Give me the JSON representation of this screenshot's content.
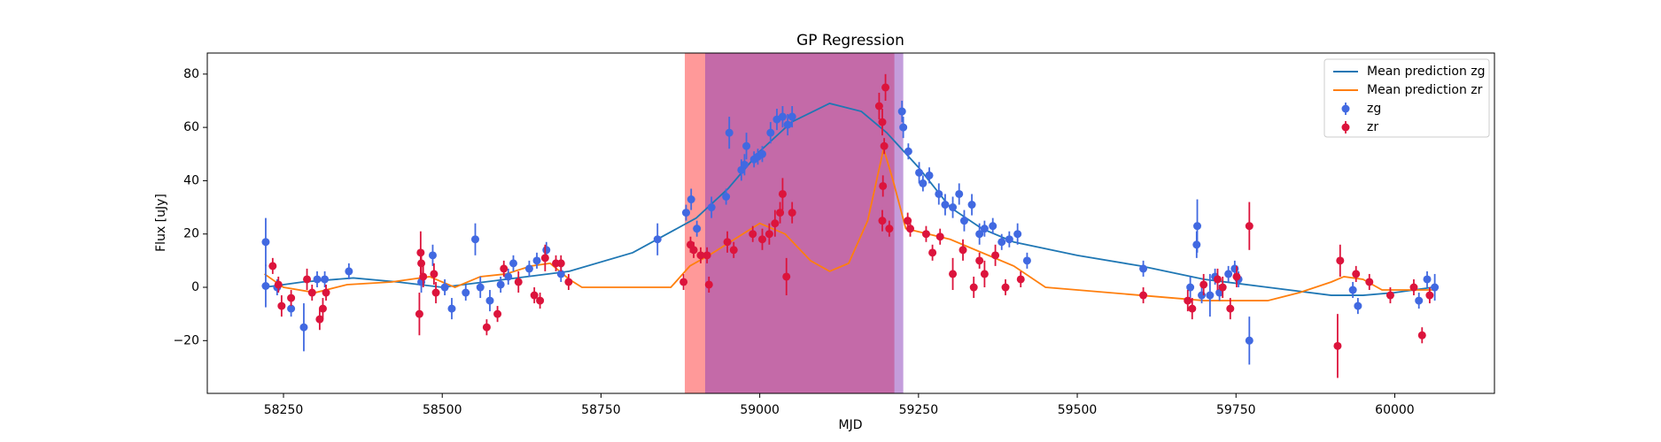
{
  "chart_data": {
    "type": "line",
    "title": "GP Regression",
    "x_label": "MJD",
    "y_label": "Flux [uJy]",
    "xlim": [
      58130,
      60157
    ],
    "ylim": [
      -39.8,
      87.9
    ],
    "xticks": [
      58250,
      58500,
      58750,
      59000,
      59250,
      59500,
      59750,
      60000
    ],
    "yticks": [
      {
        "value": -20,
        "label": "−20"
      },
      0,
      20,
      40,
      60,
      80
    ],
    "legend": "upper right",
    "spans": [
      {
        "xmin": 58882,
        "xmax": 59212,
        "color": "#ff0000",
        "alpha": 0.4
      },
      {
        "xmin": 58914,
        "xmax": 59226,
        "color": "#893bb7",
        "alpha": 0.5
      }
    ],
    "series": [
      {
        "name": "Mean prediction zg",
        "kind": "line",
        "color": "#1f77b4",
        "x": [
          58220,
          58280,
          58360,
          58430,
          58500,
          58600,
          58700,
          58800,
          58900,
          58950,
          59000,
          59050,
          59110,
          59160,
          59200,
          59250,
          59300,
          59350,
          59400,
          59500,
          59600,
          59700,
          59800,
          59900,
          59950,
          60000,
          60060
        ],
        "values": [
          0,
          2,
          3.5,
          2,
          0,
          3,
          6,
          13,
          26,
          37,
          51,
          62,
          69,
          66,
          58,
          45,
          30,
          22,
          17,
          12,
          8,
          3,
          0,
          -3,
          -3,
          -2,
          0
        ]
      },
      {
        "name": "Mean prediction zr",
        "kind": "line",
        "color": "#ff7f0e",
        "x": [
          58220,
          58250,
          58300,
          58350,
          58420,
          58480,
          58520,
          58560,
          58600,
          58640,
          58670,
          58700,
          58720,
          58860,
          58890,
          58920,
          58960,
          59000,
          59040,
          59080,
          59110,
          59140,
          59170,
          59195,
          59210,
          59230,
          59300,
          59400,
          59450,
          59500,
          59600,
          59700,
          59800,
          59850,
          59900,
          59920,
          59950,
          59980,
          60010,
          60060
        ],
        "values": [
          5,
          0,
          -2,
          1,
          2,
          4,
          0,
          4,
          5,
          8,
          9,
          3,
          0,
          0,
          8,
          12,
          18,
          24,
          20,
          10,
          6,
          9,
          25,
          52,
          40,
          22,
          18,
          8,
          0,
          -1,
          -3,
          -5,
          -5,
          -2,
          2,
          4,
          3,
          -1,
          -1,
          -1
        ]
      },
      {
        "name": "zg",
        "kind": "errorbar",
        "color": "#4169e1",
        "x": [
          58222,
          58222,
          58240,
          58262,
          58282,
          58303,
          58315,
          58353,
          58467,
          58485,
          58504,
          58515,
          58537,
          58552,
          58560,
          58575,
          58592,
          58604,
          58612,
          58637,
          58649,
          58664,
          58687,
          58839,
          58884,
          58892,
          58901,
          58924,
          58947,
          58952,
          58971,
          58976,
          58979,
          58991,
          58997,
          59004,
          59017,
          59027,
          59036,
          59044,
          59051,
          59224,
          59226,
          59234,
          59251,
          59257,
          59267,
          59282,
          59292,
          59304,
          59314,
          59322,
          59334,
          59346,
          59354,
          59367,
          59381,
          59393,
          59406,
          59421,
          59604,
          59678,
          59688,
          59689,
          59696,
          59709,
          59717,
          59724,
          59738,
          59748,
          59754,
          59771,
          59934,
          59942,
          60038,
          60051,
          60063
        ],
        "values": [
          17,
          0.5,
          0,
          -8,
          -15,
          3,
          3,
          6,
          2,
          12,
          0,
          -8,
          -2,
          18,
          0,
          -5,
          1,
          4,
          9,
          7,
          10,
          14,
          5,
          18,
          28,
          33,
          22,
          30,
          34,
          58,
          44,
          46,
          53,
          48,
          49,
          50,
          58,
          63,
          64,
          61,
          64,
          66,
          60,
          51,
          43,
          39,
          42,
          35,
          31,
          30,
          35,
          25,
          31,
          20,
          22,
          23,
          17,
          18,
          20,
          10,
          7,
          0,
          16,
          23,
          -3,
          -3,
          4,
          -2,
          5,
          7,
          3,
          -20,
          -1,
          -7,
          -5,
          3,
          0
        ],
        "errors": [
          9,
          8,
          3,
          3,
          9,
          3,
          3,
          3,
          4,
          4,
          3,
          4,
          3,
          6,
          4,
          4,
          3,
          3,
          3,
          3,
          3,
          3,
          3,
          6,
          3,
          4,
          3,
          4,
          3,
          6,
          4,
          4,
          5,
          3,
          3,
          3,
          4,
          4,
          4,
          4,
          4,
          4,
          4,
          3,
          4,
          3,
          3,
          4,
          4,
          4,
          4,
          4,
          4,
          4,
          3,
          3,
          3,
          3,
          4,
          3,
          3,
          4,
          5,
          10,
          3,
          8,
          3,
          3,
          3,
          3,
          3,
          9,
          3,
          3,
          3,
          3,
          5
        ]
      },
      {
        "name": "zr",
        "kind": "errorbar",
        "color": "#dc143c",
        "x": [
          58233,
          58242,
          58247,
          58262,
          58287,
          58295,
          58307,
          58312,
          58317,
          58464,
          58466,
          58467,
          58470,
          58487,
          58490,
          58570,
          58587,
          58597,
          58620,
          58645,
          58654,
          58662,
          58679,
          58687,
          58699,
          58880,
          58891,
          58896,
          58907,
          58917,
          58920,
          58949,
          58959,
          58989,
          59004,
          59015,
          59024,
          59032,
          59036,
          59042,
          59051,
          59188,
          59193,
          59198,
          59194,
          59193,
          59196,
          59204,
          59233,
          59237,
          59262,
          59272,
          59284,
          59304,
          59320,
          59337,
          59346,
          59354,
          59371,
          59387,
          59411,
          59604,
          59674,
          59681,
          59699,
          59721,
          59729,
          59741,
          59751,
          59771,
          59910,
          59914,
          59939,
          59960,
          59993,
          60030,
          60043,
          60055
        ],
        "values": [
          8,
          1,
          -7,
          -4,
          3,
          -2,
          -12,
          -8,
          -2,
          -10,
          13,
          9,
          4,
          5,
          -2,
          -15,
          -10,
          7,
          2,
          -3,
          -5,
          11,
          9,
          9,
          2,
          2,
          16,
          14,
          12,
          12,
          1,
          17,
          14,
          20,
          18,
          20,
          24,
          28,
          35,
          4,
          28,
          68,
          62,
          75,
          38,
          25,
          53,
          22,
          25,
          22,
          20,
          13,
          19,
          5,
          14,
          0,
          10,
          5,
          12,
          0,
          3,
          -3,
          -5,
          -8,
          1,
          3,
          0,
          -8,
          4,
          23,
          -22,
          10,
          5,
          2,
          -3,
          0,
          -18,
          -3
        ],
        "errors": [
          3,
          3,
          4,
          3,
          4,
          3,
          4,
          4,
          3,
          8,
          8,
          4,
          4,
          4,
          4,
          3,
          3,
          3,
          4,
          3,
          3,
          5,
          3,
          3,
          3,
          3,
          3,
          3,
          3,
          3,
          3,
          4,
          3,
          3,
          4,
          4,
          5,
          4,
          6,
          7,
          4,
          5,
          5,
          5,
          4,
          4,
          3,
          3,
          3,
          3,
          3,
          3,
          3,
          6,
          4,
          4,
          3,
          5,
          4,
          3,
          3,
          3,
          4,
          4,
          4,
          4,
          4,
          4,
          4,
          9,
          12,
          6,
          3,
          3,
          3,
          3,
          3,
          3
        ]
      }
    ]
  }
}
